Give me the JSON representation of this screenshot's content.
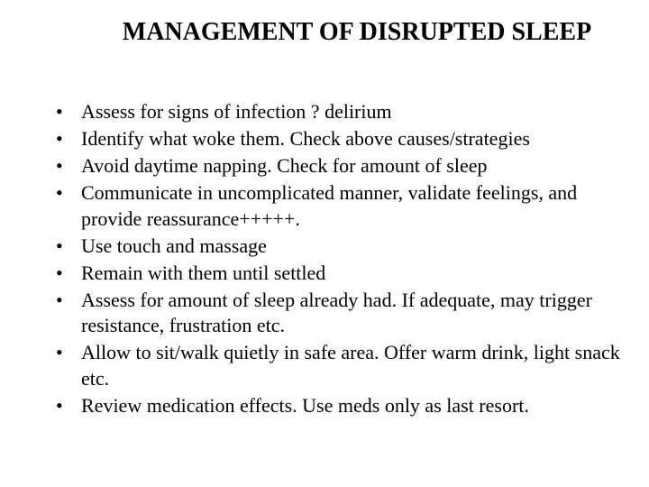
{
  "title": "MANAGEMENT OF DISRUPTED SLEEP",
  "title_fontsize": 28,
  "title_fontweight": "bold",
  "title_color": "#000000",
  "background_color": "#ffffff",
  "body_fontsize": 22,
  "body_color": "#000000",
  "font_family": "Times New Roman",
  "bullet_marker": "•",
  "bullets": [
    {
      "text": "Assess for signs of infection  ? delirium"
    },
    {
      "text": "Identify what woke them. Check above causes/strategies"
    },
    {
      "text": "Avoid daytime napping. Check for amount of sleep"
    },
    {
      "text": "Communicate in uncomplicated manner, validate feelings, and provide reassurance+++++."
    },
    {
      "text": "Use touch and massage"
    },
    {
      "text": "Remain with them until settled"
    },
    {
      "text": "Assess for amount of sleep already had. If adequate, may trigger resistance, frustration etc."
    },
    {
      "text": "Allow to sit/walk quietly in safe area. Offer warm drink, light snack etc."
    },
    {
      "text": "Review medication effects. Use meds only as last resort."
    }
  ]
}
